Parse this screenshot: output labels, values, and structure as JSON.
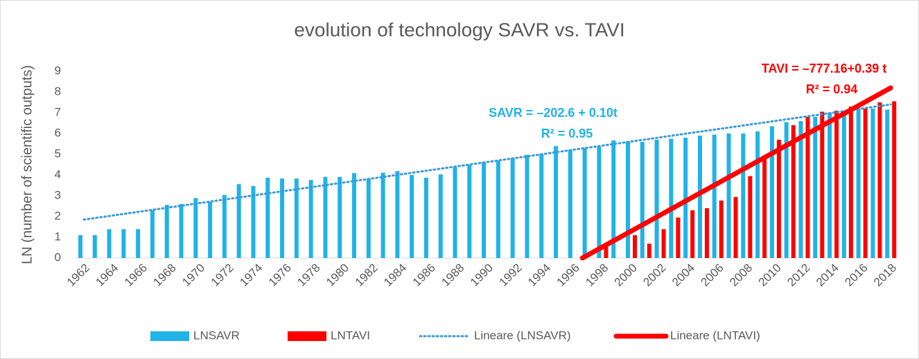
{
  "chart_data": {
    "type": "bar",
    "title": "evolution of technology SAVR vs. TAVI",
    "y_label": "LN (number of scientific outputs)",
    "categories": [
      "1962",
      null,
      "1964",
      null,
      "1966",
      null,
      "1968",
      null,
      "1970",
      null,
      "1972",
      null,
      "1974",
      null,
      "1976",
      null,
      "1978",
      null,
      "1980",
      null,
      "1982",
      null,
      "1984",
      null,
      "1986",
      null,
      "1988",
      null,
      "1990",
      null,
      "1992",
      null,
      "1994",
      null,
      "1996",
      null,
      "1998",
      null,
      "2000",
      null,
      "2002",
      null,
      "2004",
      null,
      "2006",
      null,
      "2008",
      null,
      "2010",
      null,
      "2012",
      null,
      "2014",
      null,
      "2016",
      null,
      "2018"
    ],
    "series": [
      {
        "name": "LNSAVR",
        "color": "#1fb3e8",
        "values": [
          1.1,
          1.1,
          1.39,
          1.39,
          1.39,
          2.3,
          2.56,
          2.6,
          2.89,
          2.7,
          3.04,
          3.56,
          3.47,
          3.87,
          3.83,
          3.83,
          3.76,
          3.91,
          3.91,
          4.09,
          3.83,
          4.11,
          4.19,
          4.0,
          3.87,
          4.03,
          4.38,
          4.5,
          4.6,
          4.7,
          4.8,
          4.97,
          5.0,
          5.39,
          5.2,
          5.3,
          5.36,
          5.67,
          5.6,
          5.6,
          5.7,
          5.75,
          5.8,
          5.9,
          5.95,
          6.0,
          6.0,
          6.1,
          6.35,
          6.55,
          6.6,
          6.8,
          7.0,
          7.1,
          7.2,
          7.2,
          7.15
        ]
      },
      {
        "name": "LNTAVI",
        "color": "#ff0000",
        "values": [
          null,
          null,
          null,
          null,
          null,
          null,
          null,
          null,
          null,
          null,
          null,
          null,
          null,
          null,
          null,
          null,
          null,
          null,
          null,
          null,
          null,
          null,
          null,
          null,
          null,
          null,
          null,
          null,
          null,
          null,
          null,
          null,
          null,
          null,
          null,
          null,
          0.69,
          null,
          1.1,
          0.69,
          1.39,
          1.95,
          2.3,
          2.4,
          2.77,
          2.94,
          3.95,
          4.8,
          5.7,
          6.4,
          6.8,
          7.05,
          7.1,
          7.3,
          7.2,
          7.5,
          7.55
        ]
      }
    ],
    "trendlines": [
      {
        "name": "Lineare (LNSAVR)",
        "color": "#3a9ad9",
        "dotted": true,
        "x": [
          1962,
          2018
        ],
        "values": [
          1.85,
          7.4
        ]
      },
      {
        "name": "Lineare (LNTAVI)",
        "color": "#ff0000",
        "dotted": false,
        "x": [
          1996.6,
          2018
        ],
        "values": [
          0,
          8.2
        ]
      }
    ],
    "annotations": [
      {
        "text": "SAVR = –202.6 + 0.10t",
        "color": "#1fb3e8"
      },
      {
        "text": "R² = 0.95",
        "color": "#1fb3e8"
      },
      {
        "text": "TAVI = –777.16+0.39 t",
        "color": "#ff0000"
      },
      {
        "text": "R² = 0.94",
        "color": "#ff0000"
      }
    ],
    "ylim": [
      0,
      9
    ],
    "yticks": [
      0,
      1,
      2,
      3,
      4,
      5,
      6,
      7,
      8,
      9
    ],
    "grid": false,
    "legend": "bottom"
  }
}
